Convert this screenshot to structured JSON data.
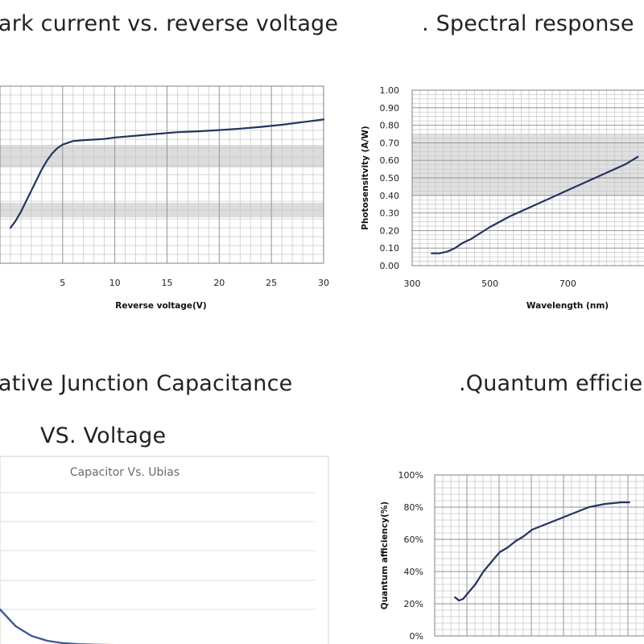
{
  "headings": {
    "dark_current": "ark current vs.  reverse voltage",
    "spectral": ".  Spectral response",
    "capacitance_line1": "ative Junction Capacitance",
    "capacitance_line2": "VS. Voltage",
    "quantum": ".Quantum efficie"
  },
  "colors": {
    "curve": "#24345f",
    "grid": "#c9c9c9",
    "band": "#d9d9d9"
  },
  "chart_data": [
    {
      "id": "dark-current",
      "type": "line",
      "title": "ark current vs.  reverse voltage",
      "xlabel": "Reverse voltage(V)",
      "ylabel": "",
      "xticks": [
        "5",
        "10",
        "15",
        "20",
        "25",
        "30"
      ],
      "grid": true,
      "series": [
        {
          "x": [
            0,
            0.5,
            1,
            1.5,
            2,
            2.5,
            3,
            3.5,
            4,
            4.5,
            5,
            5.5,
            6,
            7,
            8,
            9,
            10,
            12,
            14,
            16,
            18,
            20,
            22,
            24,
            26,
            28,
            30
          ],
          "y": [
            0.2,
            0.24,
            0.29,
            0.35,
            0.41,
            0.47,
            0.53,
            0.58,
            0.62,
            0.65,
            0.67,
            0.68,
            0.69,
            0.695,
            0.698,
            0.702,
            0.71,
            0.72,
            0.73,
            0.74,
            0.745,
            0.752,
            0.76,
            0.77,
            0.782,
            0.797,
            0.812
          ]
        }
      ]
    },
    {
      "id": "spectral-response",
      "type": "line",
      "title": ".  Spectral response",
      "xlabel": "Wavelength  (nm)",
      "ylabel": "Photosensitvity  (A/W)",
      "xticks": [
        "300",
        "500",
        "700"
      ],
      "yticks": [
        "0.00",
        "0.10",
        "0.20",
        "0.30",
        "0.40",
        "0.50",
        "0.60",
        "0.70",
        "0.80",
        "0.90",
        "1.00"
      ],
      "ylim": [
        0,
        1
      ],
      "grid": true,
      "series": [
        {
          "x": [
            350,
            370,
            390,
            410,
            430,
            450,
            500,
            550,
            600,
            650,
            700,
            750,
            800,
            850,
            880
          ],
          "y": [
            0.07,
            0.07,
            0.08,
            0.1,
            0.13,
            0.15,
            0.22,
            0.28,
            0.33,
            0.38,
            0.43,
            0.48,
            0.53,
            0.58,
            0.62
          ]
        }
      ]
    },
    {
      "id": "capacitance",
      "type": "line",
      "title": "Capacitor Vs. Ubias",
      "xlabel": "",
      "ylabel": "",
      "grid": true,
      "series": [
        {
          "x": [
            0,
            0.5,
            1,
            1.5,
            2,
            2.5,
            3,
            4,
            5
          ],
          "y": [
            0.08,
            0.045,
            0.025,
            0.015,
            0.01,
            0.008,
            0.007,
            0.006,
            0.005
          ]
        }
      ]
    },
    {
      "id": "quantum-efficiency",
      "type": "line",
      "title": ".Quantum efficie",
      "xlabel": "",
      "ylabel": "Quantum afficiency(%)",
      "yticks": [
        "0%",
        "20%",
        "40%",
        "60%",
        "80%",
        "100%"
      ],
      "ylim": [
        0,
        100
      ],
      "grid": true,
      "series": [
        {
          "x": [
            350,
            360,
            370,
            380,
            390,
            400,
            420,
            440,
            460,
            480,
            500,
            520,
            540,
            560,
            580,
            600,
            620,
            640,
            660,
            680,
            700,
            720,
            740,
            760,
            780
          ],
          "y": [
            24,
            22,
            23,
            26,
            29,
            32,
            40,
            46,
            52,
            55,
            59,
            62,
            66,
            68,
            70,
            72,
            74,
            76,
            78,
            80,
            81,
            82,
            82.5,
            83,
            83
          ]
        }
      ]
    }
  ]
}
